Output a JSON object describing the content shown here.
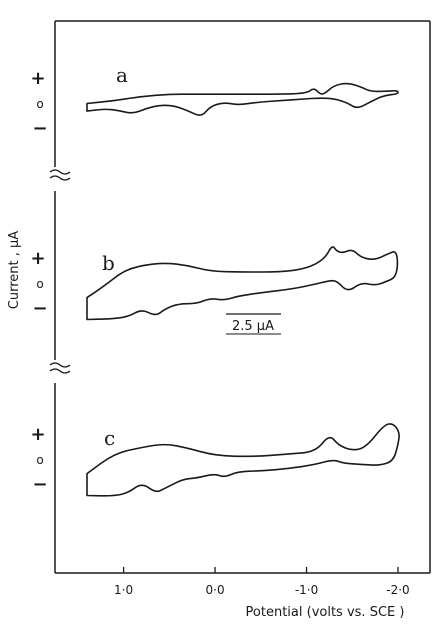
{
  "chart_data": {
    "type": "line",
    "xlabel": "Potential (volts vs. SCE )",
    "ylabel": "Current , µA",
    "xtick_labels": [
      "1·0",
      "0·0",
      "-1·0",
      "-2·0"
    ],
    "xticks": [
      1.0,
      0.0,
      -1.0,
      -2.0
    ],
    "xlim": [
      1.75,
      -2.35
    ],
    "x_reversed": true,
    "scale_bar": "2.5 µA",
    "scale_bar_uA": 2.5,
    "grid": false,
    "panels": [
      {
        "label": "a",
        "y_marks": [
          "+",
          "o",
          "−"
        ],
        "series": [
          {
            "x": [
              1.4,
              1.1,
              0.8,
              0.5,
              0.2,
              -0.2,
              -0.6,
              -1.0,
              -1.08,
              -1.15,
              -1.2,
              -1.3,
              -1.45,
              -1.6,
              -1.7,
              -1.85,
              -2.0,
              -2.0,
              -1.85,
              -1.7,
              -1.55,
              -1.45,
              -1.3,
              -1.15,
              -0.95,
              -0.7,
              -0.45,
              -0.25,
              -0.1,
              0.05,
              0.15,
              0.3,
              0.45,
              0.6,
              0.75,
              0.9,
              1.05,
              1.2,
              1.4
            ],
            "y": [
              0.1,
              0.6,
              1.4,
              1.8,
              1.8,
              1.8,
              1.8,
              1.9,
              3.0,
              1.8,
              1.9,
              3.4,
              3.9,
              3.1,
              2.3,
              2.3,
              2.5,
              1.8,
              1.6,
              0.4,
              -0.9,
              0.2,
              1.0,
              1.1,
              0.9,
              0.6,
              0.3,
              -0.2,
              0.3,
              -0.4,
              -2.4,
              -1.2,
              -0.3,
              -0.2,
              -0.8,
              -1.8,
              -1.2,
              -0.9,
              -1.3
            ]
          }
        ]
      },
      {
        "label": "b",
        "y_marks": [
          "+",
          "o",
          "−"
        ],
        "series": [
          {
            "x": [
              1.4,
              1.2,
              1.0,
              0.8,
              0.55,
              0.3,
              0.05,
              -0.3,
              -0.7,
              -1.0,
              -1.2,
              -1.28,
              -1.33,
              -1.4,
              -1.5,
              -1.6,
              -1.75,
              -1.9,
              -1.98,
              -2.0,
              -1.97,
              -1.88,
              -1.75,
              -1.6,
              -1.45,
              -1.33,
              -1.25,
              -1.1,
              -0.85,
              -0.5,
              -0.25,
              -0.1,
              0.05,
              0.2,
              0.4,
              0.55,
              0.65,
              0.8,
              0.95,
              1.15,
              1.4
            ],
            "y": [
              -2.5,
              -0.2,
              2.4,
              3.4,
              3.9,
              3.4,
              2.3,
              2.2,
              2.2,
              2.8,
              4.6,
              7.2,
              6.0,
              5.7,
              6.4,
              4.8,
              4.4,
              5.6,
              6.1,
              3.5,
              1.2,
              0.5,
              -0.3,
              0.3,
              -1.5,
              0.6,
              0.6,
              0.0,
              -0.9,
              -1.6,
              -2.2,
              -3.0,
              -2.6,
              -3.6,
              -3.6,
              -4.6,
              -5.9,
              -4.6,
              -6.0,
              -6.4,
              -6.5
            ]
          }
        ]
      },
      {
        "label": "c",
        "y_marks": [
          "+",
          "o",
          "−"
        ],
        "series": [
          {
            "x": [
              1.4,
              1.1,
              0.8,
              0.55,
              0.3,
              0.0,
              -0.4,
              -0.8,
              -1.1,
              -1.25,
              -1.35,
              -1.5,
              -1.65,
              -1.85,
              -1.95,
              -2.02,
              -2.0,
              -1.95,
              -1.8,
              -1.6,
              -1.4,
              -1.3,
              -1.1,
              -0.8,
              -0.5,
              -0.25,
              -0.1,
              0.0,
              0.2,
              0.35,
              0.55,
              0.65,
              0.8,
              0.95,
              1.1,
              1.4
            ],
            "y": [
              -2.5,
              1.2,
              2.3,
              3.0,
              2.2,
              0.8,
              0.6,
              1.1,
              1.5,
              4.7,
              2.7,
              1.7,
              2.3,
              6.5,
              6.7,
              5.0,
              2.8,
              -0.2,
              -1.0,
              -0.8,
              -0.6,
              0.1,
              -0.8,
              -1.6,
              -2.0,
              -2.1,
              -3.2,
              -2.5,
              -3.3,
              -3.5,
              -5.2,
              -6.0,
              -4.2,
              -6.0,
              -6.6,
              -6.5
            ]
          }
        ]
      }
    ]
  }
}
